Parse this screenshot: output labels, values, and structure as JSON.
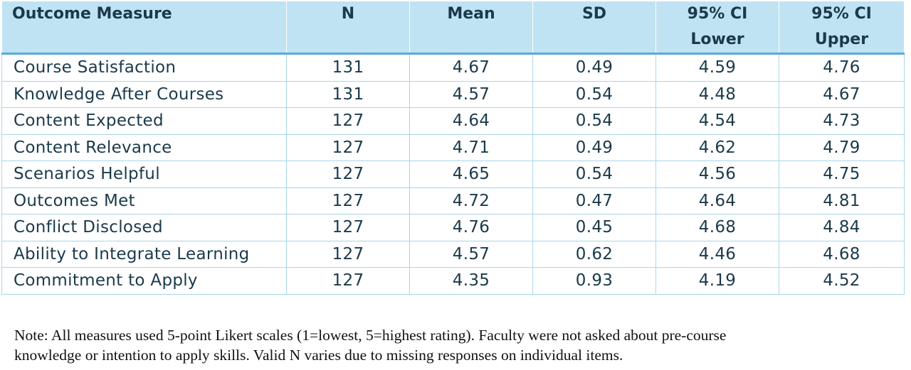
{
  "table": {
    "headers": [
      {
        "lines": [
          "Outcome Measure"
        ]
      },
      {
        "lines": [
          "N"
        ]
      },
      {
        "lines": [
          "Mean"
        ]
      },
      {
        "lines": [
          "SD"
        ]
      },
      {
        "lines": [
          "95% CI",
          "Lower"
        ]
      },
      {
        "lines": [
          "95% CI",
          "Upper"
        ]
      }
    ],
    "rows": [
      [
        "Course Satisfaction",
        "131",
        "4.67",
        "0.49",
        "4.59",
        "4.76"
      ],
      [
        "Knowledge After Courses",
        "131",
        "4.57",
        "0.54",
        "4.48",
        "4.67"
      ],
      [
        "Content Expected",
        "127",
        "4.64",
        "0.54",
        "4.54",
        "4.73"
      ],
      [
        "Content Relevance",
        "127",
        "4.71",
        "0.49",
        "4.62",
        "4.79"
      ],
      [
        "Scenarios Helpful",
        "127",
        "4.65",
        "0.54",
        "4.56",
        "4.75"
      ],
      [
        "Outcomes Met",
        "127",
        "4.72",
        "0.47",
        "4.64",
        "4.81"
      ],
      [
        "Conflict Disclosed",
        "127",
        "4.76",
        "0.45",
        "4.68",
        "4.84"
      ],
      [
        "Ability to Integrate Learning",
        "127",
        "4.57",
        "0.62",
        "4.46",
        "4.68"
      ],
      [
        "Commitment to Apply",
        "127",
        "4.35",
        "0.93",
        "4.19",
        "4.52"
      ]
    ]
  },
  "note": {
    "line1": "Note: All measures used 5-point Likert scales (1=lowest, 5=highest rating). Faculty were not asked about pre-course",
    "line2": "knowledge or intention to apply skills. Valid N varies due to missing responses on individual items."
  },
  "colors": {
    "header_bg": "#bfe3f2",
    "header_rule": "#5aaad6",
    "grid": "#a8d6ec",
    "text": "#1a3a4a"
  }
}
